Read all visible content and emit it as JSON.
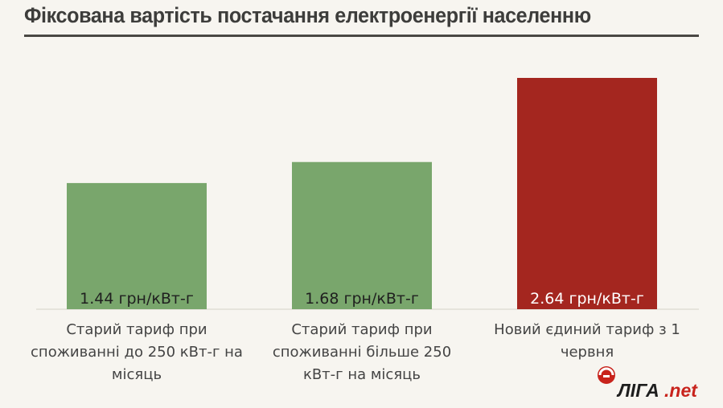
{
  "chart_data": {
    "type": "bar",
    "title": "Фіксована вартість постачання електроенергії населенню",
    "categories": [
      "Старий тариф при споживанні до 250 кВт-г на місяць",
      "Старий тариф при споживанні більше 250 кВт-г на місяць",
      "Новий єдиний тариф з 1 червня"
    ],
    "category_lines": [
      [
        "Старий тариф при",
        "споживанні до 250 кВт-г на",
        "місяць"
      ],
      [
        "Старий тариф при",
        "споживанні більше 250",
        "кВт-г на місяць"
      ],
      [
        "Новий єдиний тариф з 1",
        "червня"
      ]
    ],
    "values": [
      1.44,
      1.68,
      2.64
    ],
    "value_labels": [
      "1.44 грн/кВт-г",
      "1.68 грн/кВт-г",
      "2.64 грн/кВт-г"
    ],
    "colors": [
      "#79a66c",
      "#79a66c",
      "#a4261f"
    ],
    "label_colors": [
      "#1f1f1f",
      "#1f1f1f",
      "#ffffff"
    ],
    "ylim": [
      0,
      2.64
    ],
    "xlabel": "",
    "ylabel": "",
    "grid": false
  },
  "logo": {
    "text": "ЛІГА",
    "suffix": ".net",
    "colors": {
      "main": "#1e1e1e",
      "accent": "#c8231c"
    }
  }
}
